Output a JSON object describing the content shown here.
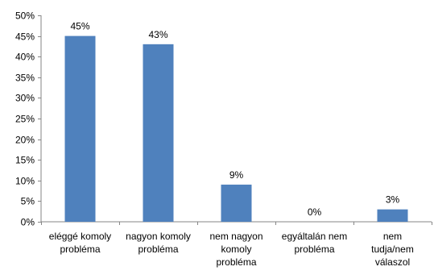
{
  "chart_data": {
    "type": "bar",
    "categories": [
      [
        "eléggé komoly",
        "probléma"
      ],
      [
        "nagyon komoly",
        "probléma"
      ],
      [
        "nem nagyon",
        "komoly",
        "probléma"
      ],
      [
        "egyáltalán nem",
        "probléma"
      ],
      [
        "nem",
        "tudja/nem",
        "válaszol"
      ]
    ],
    "values": [
      45,
      43,
      9,
      0,
      3
    ],
    "data_labels": [
      "45%",
      "43%",
      "9%",
      "0%",
      "3%"
    ],
    "ylim": [
      0,
      50
    ],
    "y_ticks": [
      0,
      5,
      10,
      15,
      20,
      25,
      30,
      35,
      40,
      45,
      50
    ],
    "y_tick_labels": [
      "0%",
      "5%",
      "10%",
      "15%",
      "20%",
      "25%",
      "30%",
      "35%",
      "40%",
      "45%",
      "50%"
    ],
    "bar_color": "#4f81bd",
    "axis_color": "#868686",
    "grid": false,
    "legend": "none"
  }
}
